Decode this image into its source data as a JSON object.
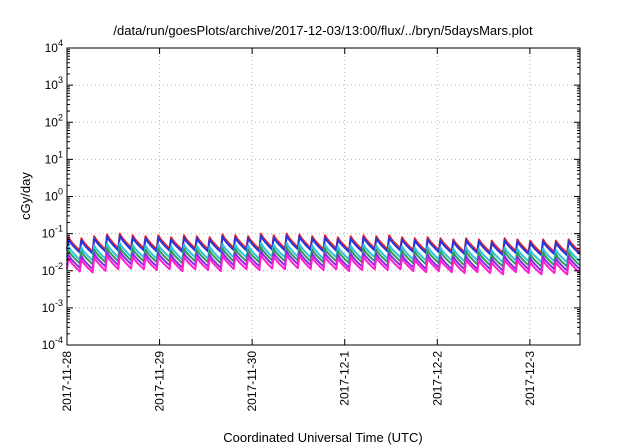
{
  "chart_data": {
    "type": "line",
    "title": "/data/run/goesPlots/archive/2017-12-03/13:00/flux/../bryn/5daysMars.plot",
    "xlabel": "Coordinated Universal Time (UTC)",
    "ylabel": "cGy/day",
    "yscale": "log",
    "ylim": [
      0.0001,
      10000
    ],
    "yticks": [
      {
        "base": "10",
        "exp": "-4",
        "value": 0.0001
      },
      {
        "base": "10",
        "exp": "-3",
        "value": 0.001
      },
      {
        "base": "10",
        "exp": "-2",
        "value": 0.01
      },
      {
        "base": "10",
        "exp": "-1",
        "value": 0.1
      },
      {
        "base": "10",
        "exp": "0",
        "value": 1
      },
      {
        "base": "10",
        "exp": "1",
        "value": 10
      },
      {
        "base": "10",
        "exp": "2",
        "value": 100
      },
      {
        "base": "10",
        "exp": "3",
        "value": 1000
      },
      {
        "base": "10",
        "exp": "4",
        "value": 10000
      }
    ],
    "xlim": [
      "2017-11-28 00:00",
      "2017-12-03 13:00"
    ],
    "xticks": [
      "2017-11-28",
      "2017-11-29",
      "2017-11-30",
      "2017-12-1",
      "2017-12-2",
      "2017-12-3"
    ],
    "grid": true,
    "legend": "none",
    "series": [
      {
        "color": "#e8262b",
        "peak_values": [
          0.08,
          0.075,
          0.085,
          0.095,
          0.1,
          0.09,
          0.085,
          0.09,
          0.08,
          0.09,
          0.085,
          0.08,
          0.095,
          0.09,
          0.085,
          0.1,
          0.09,
          0.1,
          0.095,
          0.085,
          0.09,
          0.08,
          0.085,
          0.09,
          0.085,
          0.09,
          0.08,
          0.075,
          0.08,
          0.075,
          0.07,
          0.075,
          0.07,
          0.065,
          0.075,
          0.07,
          0.065,
          0.07,
          0.065,
          0.07
        ],
        "trough_values": [
          0.035,
          0.033,
          0.037,
          0.04,
          0.042,
          0.04,
          0.038,
          0.04,
          0.036,
          0.04,
          0.038,
          0.036,
          0.041,
          0.04,
          0.038,
          0.042,
          0.04,
          0.043,
          0.041,
          0.038,
          0.04,
          0.036,
          0.038,
          0.04,
          0.038,
          0.04,
          0.036,
          0.034,
          0.036,
          0.034,
          0.032,
          0.034,
          0.032,
          0.03,
          0.034,
          0.032,
          0.03,
          0.032,
          0.03,
          0.032
        ]
      },
      {
        "color": "#2436e0",
        "peak_values": [
          0.07,
          0.066,
          0.075,
          0.084,
          0.088,
          0.079,
          0.075,
          0.079,
          0.07,
          0.079,
          0.075,
          0.07,
          0.084,
          0.079,
          0.075,
          0.088,
          0.079,
          0.088,
          0.084,
          0.075,
          0.079,
          0.07,
          0.075,
          0.079,
          0.075,
          0.079,
          0.07,
          0.066,
          0.07,
          0.066,
          0.062,
          0.066,
          0.062,
          0.057,
          0.066,
          0.062,
          0.057,
          0.062,
          0.057,
          0.062
        ],
        "trough_values": [
          0.031,
          0.029,
          0.033,
          0.035,
          0.037,
          0.035,
          0.033,
          0.035,
          0.032,
          0.035,
          0.033,
          0.032,
          0.036,
          0.035,
          0.033,
          0.037,
          0.035,
          0.038,
          0.036,
          0.033,
          0.035,
          0.032,
          0.033,
          0.035,
          0.033,
          0.035,
          0.032,
          0.03,
          0.032,
          0.03,
          0.028,
          0.03,
          0.028,
          0.026,
          0.03,
          0.028,
          0.026,
          0.028,
          0.026,
          0.028
        ]
      },
      {
        "color": "#2ec4d6",
        "peak_values": [
          0.045,
          0.042,
          0.048,
          0.053,
          0.056,
          0.05,
          0.048,
          0.05,
          0.045,
          0.05,
          0.048,
          0.045,
          0.053,
          0.05,
          0.048,
          0.056,
          0.05,
          0.056,
          0.053,
          0.048,
          0.05,
          0.045,
          0.048,
          0.05,
          0.048,
          0.05,
          0.045,
          0.042,
          0.045,
          0.042,
          0.039,
          0.042,
          0.039,
          0.036,
          0.042,
          0.039,
          0.036,
          0.039,
          0.036,
          0.039
        ],
        "trough_values": [
          0.02,
          0.019,
          0.021,
          0.023,
          0.024,
          0.023,
          0.021,
          0.023,
          0.02,
          0.023,
          0.021,
          0.02,
          0.023,
          0.023,
          0.021,
          0.024,
          0.023,
          0.024,
          0.023,
          0.021,
          0.023,
          0.02,
          0.021,
          0.023,
          0.021,
          0.023,
          0.02,
          0.019,
          0.02,
          0.019,
          0.018,
          0.019,
          0.018,
          0.017,
          0.019,
          0.018,
          0.017,
          0.018,
          0.017,
          0.018
        ]
      },
      {
        "color": "#2e9a5a",
        "peak_values": [
          0.035,
          0.033,
          0.037,
          0.041,
          0.043,
          0.039,
          0.037,
          0.039,
          0.035,
          0.039,
          0.037,
          0.035,
          0.041,
          0.039,
          0.037,
          0.043,
          0.039,
          0.043,
          0.041,
          0.037,
          0.039,
          0.035,
          0.037,
          0.039,
          0.037,
          0.039,
          0.035,
          0.033,
          0.035,
          0.033,
          0.031,
          0.033,
          0.031,
          0.028,
          0.033,
          0.031,
          0.028,
          0.031,
          0.028,
          0.031
        ],
        "trough_values": [
          0.016,
          0.015,
          0.017,
          0.018,
          0.019,
          0.018,
          0.017,
          0.018,
          0.016,
          0.018,
          0.017,
          0.016,
          0.018,
          0.018,
          0.017,
          0.019,
          0.018,
          0.019,
          0.018,
          0.017,
          0.018,
          0.016,
          0.017,
          0.018,
          0.017,
          0.018,
          0.016,
          0.015,
          0.016,
          0.015,
          0.014,
          0.015,
          0.014,
          0.013,
          0.015,
          0.014,
          0.013,
          0.014,
          0.013,
          0.014
        ]
      },
      {
        "color": "#8a2be2",
        "peak_values": [
          0.027,
          0.025,
          0.029,
          0.032,
          0.034,
          0.03,
          0.029,
          0.03,
          0.027,
          0.03,
          0.029,
          0.027,
          0.032,
          0.03,
          0.029,
          0.034,
          0.03,
          0.034,
          0.032,
          0.029,
          0.03,
          0.027,
          0.029,
          0.03,
          0.029,
          0.03,
          0.027,
          0.025,
          0.027,
          0.025,
          0.024,
          0.025,
          0.024,
          0.022,
          0.025,
          0.024,
          0.022,
          0.024,
          0.022,
          0.024
        ],
        "trough_values": [
          0.012,
          0.011,
          0.013,
          0.014,
          0.015,
          0.014,
          0.013,
          0.014,
          0.012,
          0.014,
          0.013,
          0.012,
          0.014,
          0.014,
          0.013,
          0.015,
          0.014,
          0.015,
          0.014,
          0.013,
          0.014,
          0.012,
          0.013,
          0.014,
          0.013,
          0.014,
          0.012,
          0.011,
          0.012,
          0.011,
          0.011,
          0.011,
          0.011,
          0.01,
          0.011,
          0.011,
          0.01,
          0.011,
          0.01,
          0.011
        ]
      },
      {
        "color": "#ff1fd0",
        "peak_values": [
          0.022,
          0.02,
          0.023,
          0.026,
          0.027,
          0.024,
          0.023,
          0.024,
          0.022,
          0.024,
          0.023,
          0.022,
          0.026,
          0.024,
          0.023,
          0.027,
          0.024,
          0.027,
          0.026,
          0.023,
          0.024,
          0.022,
          0.023,
          0.024,
          0.023,
          0.024,
          0.022,
          0.02,
          0.022,
          0.02,
          0.019,
          0.02,
          0.019,
          0.017,
          0.02,
          0.019,
          0.017,
          0.019,
          0.017,
          0.019
        ],
        "trough_values": [
          0.0095,
          0.009,
          0.01,
          0.011,
          0.0115,
          0.011,
          0.0105,
          0.011,
          0.0098,
          0.011,
          0.0105,
          0.0098,
          0.0112,
          0.011,
          0.0105,
          0.0115,
          0.011,
          0.0118,
          0.0112,
          0.0105,
          0.011,
          0.0098,
          0.0105,
          0.011,
          0.0105,
          0.011,
          0.0098,
          0.0092,
          0.0098,
          0.0092,
          0.0087,
          0.0092,
          0.0087,
          0.008,
          0.0092,
          0.0087,
          0.008,
          0.0087,
          0.008,
          0.0087
        ]
      }
    ]
  }
}
